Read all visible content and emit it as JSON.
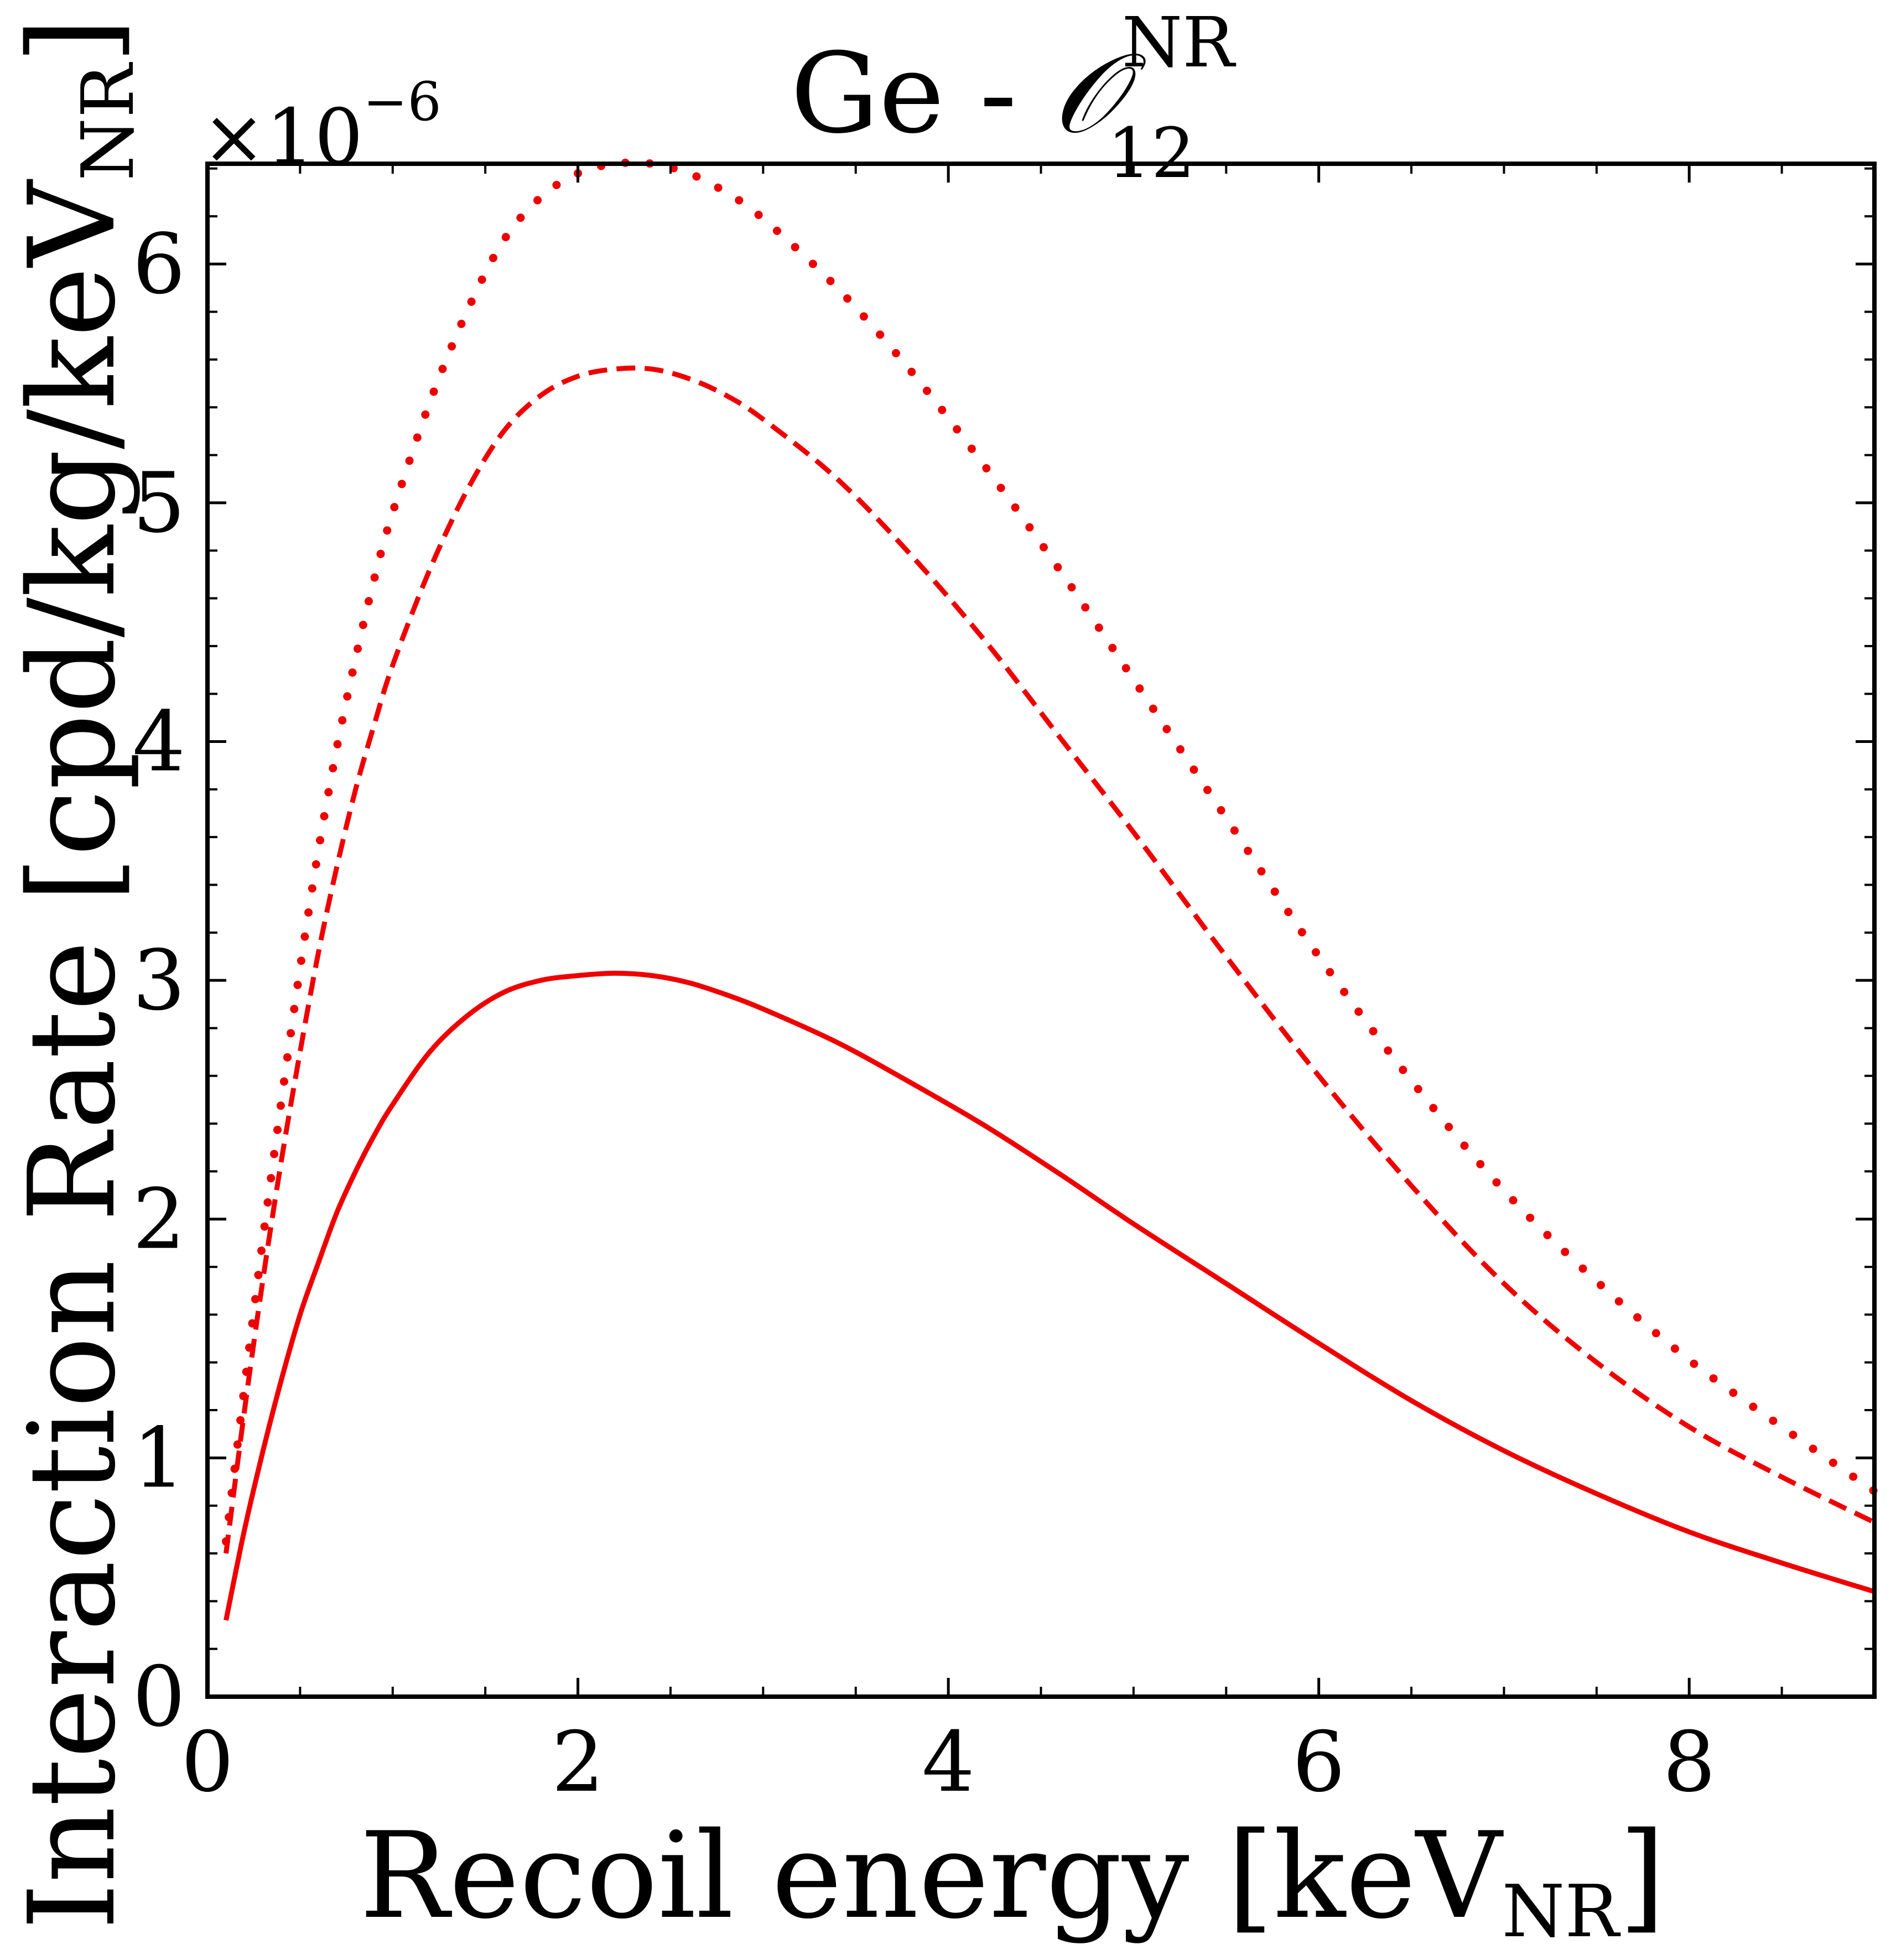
{
  "chart_data": {
    "type": "line",
    "title": {
      "prefix": "Ge - ",
      "operator": "𝒪",
      "sup": "NR",
      "sub": "12"
    },
    "xlabel": {
      "main": "Recoil energy [keV",
      "sub": "NR",
      "close": "]"
    },
    "ylabel": {
      "main": "Interaction Rate [cpd/kg/keV",
      "sub": "NR",
      "close": "]"
    },
    "y_multiplier": {
      "base": "×10",
      "exponent": "−6"
    },
    "xlim": [
      0,
      9.0
    ],
    "ylim": [
      0,
      6.42
    ],
    "x_ticks": [
      {
        "value": 0,
        "label": "0"
      },
      {
        "value": 2,
        "label": "2"
      },
      {
        "value": 4,
        "label": "4"
      },
      {
        "value": 6,
        "label": "6"
      },
      {
        "value": 8,
        "label": "8"
      }
    ],
    "y_ticks": [
      {
        "value": 0,
        "label": "0"
      },
      {
        "value": 1,
        "label": "1"
      },
      {
        "value": 2,
        "label": "2"
      },
      {
        "value": 3,
        "label": "3"
      },
      {
        "value": 4,
        "label": "4"
      },
      {
        "value": 5,
        "label": "5"
      },
      {
        "value": 6,
        "label": "6"
      }
    ],
    "series": [
      {
        "name": "solid",
        "style": "solid",
        "color": "#ee0000",
        "x": [
          0.1,
          0.2,
          0.3,
          0.4,
          0.5,
          0.6,
          0.7,
          0.8,
          0.9,
          1.0,
          1.2,
          1.4,
          1.6,
          1.8,
          2.0,
          2.2,
          2.4,
          2.6,
          2.8,
          3.0,
          3.4,
          3.8,
          4.2,
          4.6,
          5.0,
          5.5,
          6.0,
          6.5,
          7.0,
          7.5,
          8.0,
          8.5,
          9.0
        ],
        "y": [
          0.32,
          0.7,
          1.03,
          1.33,
          1.6,
          1.82,
          2.03,
          2.2,
          2.35,
          2.48,
          2.7,
          2.85,
          2.95,
          3.0,
          3.02,
          3.03,
          3.02,
          2.99,
          2.94,
          2.88,
          2.74,
          2.57,
          2.39,
          2.19,
          1.98,
          1.73,
          1.48,
          1.24,
          1.03,
          0.85,
          0.69,
          0.56,
          0.44
        ]
      },
      {
        "name": "dashed",
        "style": "dashed",
        "color": "#ee0000",
        "x": [
          0.1,
          0.2,
          0.3,
          0.4,
          0.5,
          0.6,
          0.7,
          0.8,
          0.9,
          1.0,
          1.2,
          1.4,
          1.6,
          1.8,
          2.0,
          2.2,
          2.4,
          2.6,
          2.8,
          3.0,
          3.4,
          3.8,
          4.2,
          4.6,
          5.0,
          5.5,
          6.0,
          6.5,
          7.0,
          7.5,
          8.0,
          8.5,
          9.0
        ],
        "y": [
          0.6,
          1.2,
          1.75,
          2.25,
          2.7,
          3.12,
          3.48,
          3.8,
          4.07,
          4.32,
          4.72,
          5.05,
          5.3,
          5.45,
          5.53,
          5.56,
          5.56,
          5.52,
          5.45,
          5.35,
          5.1,
          4.78,
          4.42,
          4.02,
          3.62,
          3.1,
          2.6,
          2.14,
          1.73,
          1.4,
          1.13,
          0.92,
          0.73
        ]
      },
      {
        "name": "dotted",
        "style": "dotted",
        "color": "#ee0000",
        "x": [
          0.1,
          0.2,
          0.3,
          0.4,
          0.5,
          0.6,
          0.7,
          0.8,
          0.9,
          1.0,
          1.2,
          1.4,
          1.6,
          1.8,
          2.0,
          2.2,
          2.4,
          2.6,
          2.8,
          3.0,
          3.4,
          3.8,
          4.2,
          4.6,
          5.0,
          5.5,
          6.0,
          6.5,
          7.0,
          7.5,
          8.0,
          8.5,
          9.0
        ],
        "y": [
          0.65,
          1.3,
          1.92,
          2.5,
          3.05,
          3.55,
          3.98,
          4.35,
          4.68,
          4.96,
          5.42,
          5.8,
          6.1,
          6.28,
          6.38,
          6.42,
          6.42,
          6.38,
          6.3,
          6.19,
          5.9,
          5.55,
          5.15,
          4.72,
          4.26,
          3.68,
          3.1,
          2.58,
          2.12,
          1.74,
          1.41,
          1.13,
          0.86
        ]
      }
    ]
  }
}
